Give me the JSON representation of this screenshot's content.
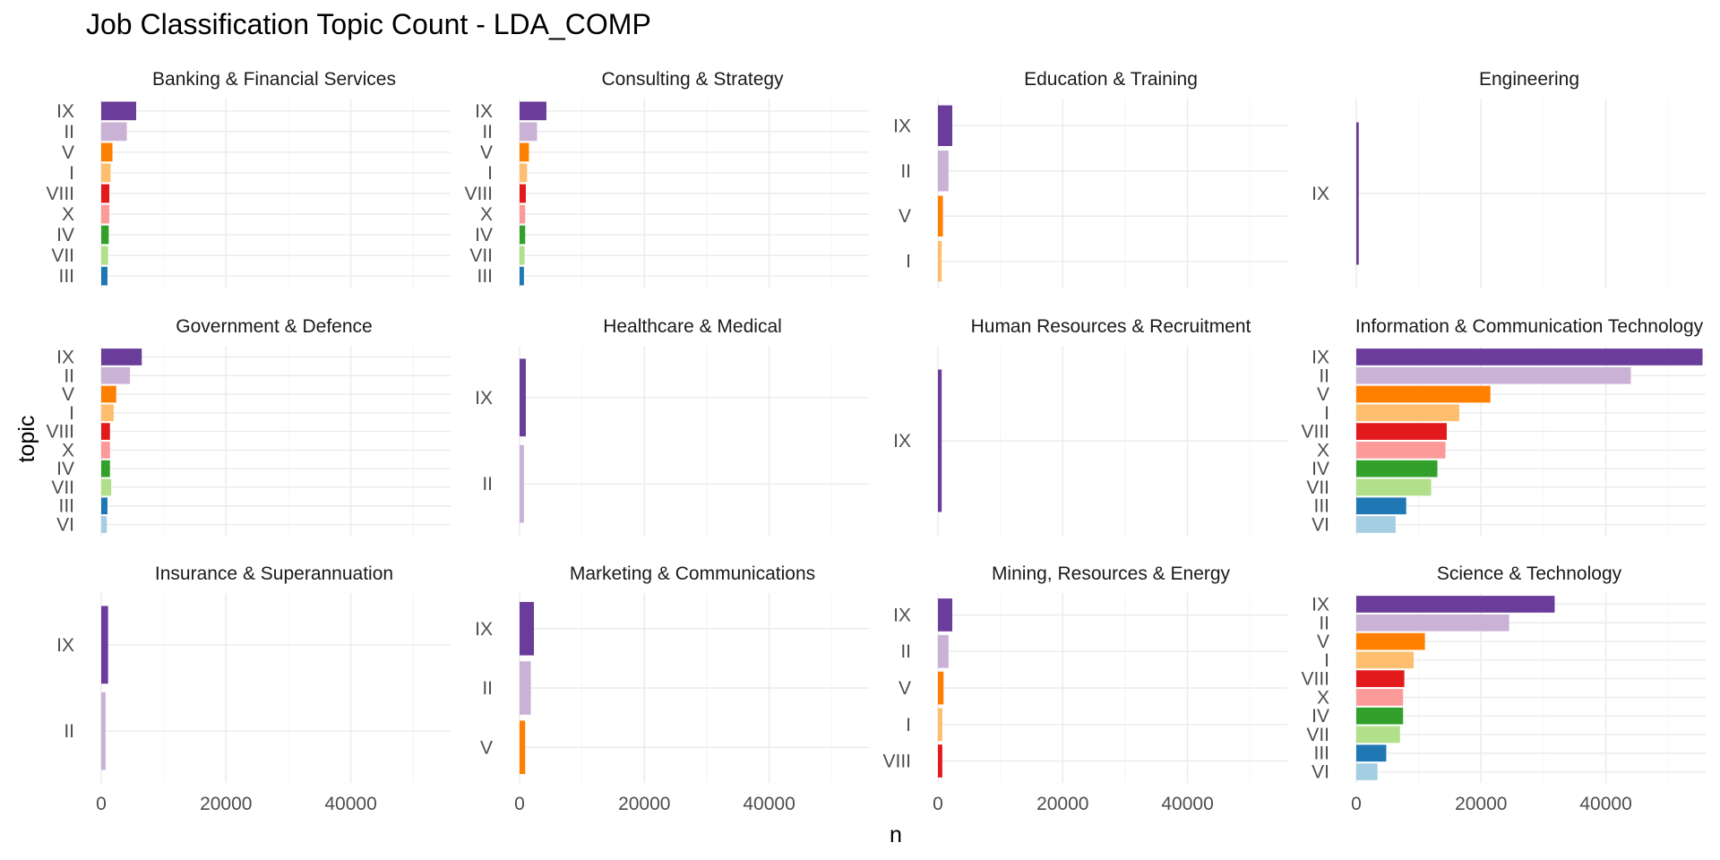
{
  "chart_data": {
    "type": "bar",
    "orientation": "horizontal",
    "title": "Job Classification Topic Count - LDA_COMP",
    "xlabel": "n",
    "ylabel": "topic",
    "xlim": [
      0,
      56000
    ],
    "x_ticks": [
      0,
      20000,
      40000
    ],
    "x_tick_labels": [
      "0",
      "20000",
      "40000"
    ],
    "grid": true,
    "legend": "none",
    "colors": {
      "IX": "#6a3d9a",
      "II": "#cab2d6",
      "V": "#ff7f00",
      "I": "#fdbf6f",
      "VIII": "#e31a1c",
      "X": "#fb9a99",
      "IV": "#33a02c",
      "VII": "#b2df8a",
      "III": "#1f78b4",
      "VI": "#a6cee3"
    },
    "panels": [
      {
        "name": "Banking & Financial Services",
        "categories": [
          "IX",
          "II",
          "V",
          "I",
          "VIII",
          "X",
          "IV",
          "VII",
          "III"
        ],
        "values": [
          5600,
          4100,
          1800,
          1500,
          1300,
          1300,
          1200,
          1100,
          1000
        ]
      },
      {
        "name": "Consulting & Strategy",
        "categories": [
          "IX",
          "II",
          "V",
          "I",
          "VIII",
          "X",
          "IV",
          "VII",
          "III"
        ],
        "values": [
          4300,
          2800,
          1500,
          1200,
          1000,
          900,
          900,
          800,
          700
        ]
      },
      {
        "name": "Education & Training",
        "categories": [
          "IX",
          "II",
          "V",
          "I"
        ],
        "values": [
          2300,
          1700,
          800,
          600
        ]
      },
      {
        "name": "Engineering",
        "categories": [
          "IX"
        ],
        "values": [
          400
        ]
      },
      {
        "name": "Government & Defence",
        "categories": [
          "IX",
          "II",
          "V",
          "I",
          "VIII",
          "X",
          "IV",
          "VII",
          "III",
          "VI"
        ],
        "values": [
          6500,
          4600,
          2400,
          2000,
          1400,
          1400,
          1400,
          1600,
          1000,
          900
        ]
      },
      {
        "name": "Healthcare & Medical",
        "categories": [
          "IX",
          "II"
        ],
        "values": [
          1000,
          700
        ]
      },
      {
        "name": "Human Resources & Recruitment",
        "categories": [
          "IX"
        ],
        "values": [
          600
        ]
      },
      {
        "name": "Information & Communication Technology",
        "categories": [
          "IX",
          "II",
          "V",
          "I",
          "VIII",
          "X",
          "IV",
          "VII",
          "III",
          "VI"
        ],
        "values": [
          55500,
          44000,
          21500,
          16500,
          14500,
          14300,
          13000,
          12000,
          8000,
          6300
        ]
      },
      {
        "name": "Insurance & Superannuation",
        "categories": [
          "IX",
          "II"
        ],
        "values": [
          1100,
          700
        ]
      },
      {
        "name": "Marketing & Communications",
        "categories": [
          "IX",
          "II",
          "V"
        ],
        "values": [
          2300,
          1800,
          900
        ]
      },
      {
        "name": "Mining, Resources & Energy",
        "categories": [
          "IX",
          "II",
          "V",
          "I",
          "VIII"
        ],
        "values": [
          2300,
          1700,
          900,
          700,
          700
        ]
      },
      {
        "name": "Science & Technology",
        "categories": [
          "IX",
          "II",
          "V",
          "I",
          "VIII",
          "X",
          "IV",
          "VII",
          "III",
          "VI"
        ],
        "values": [
          31800,
          24500,
          11000,
          9200,
          7700,
          7500,
          7500,
          7000,
          4800,
          3400
        ]
      }
    ]
  }
}
